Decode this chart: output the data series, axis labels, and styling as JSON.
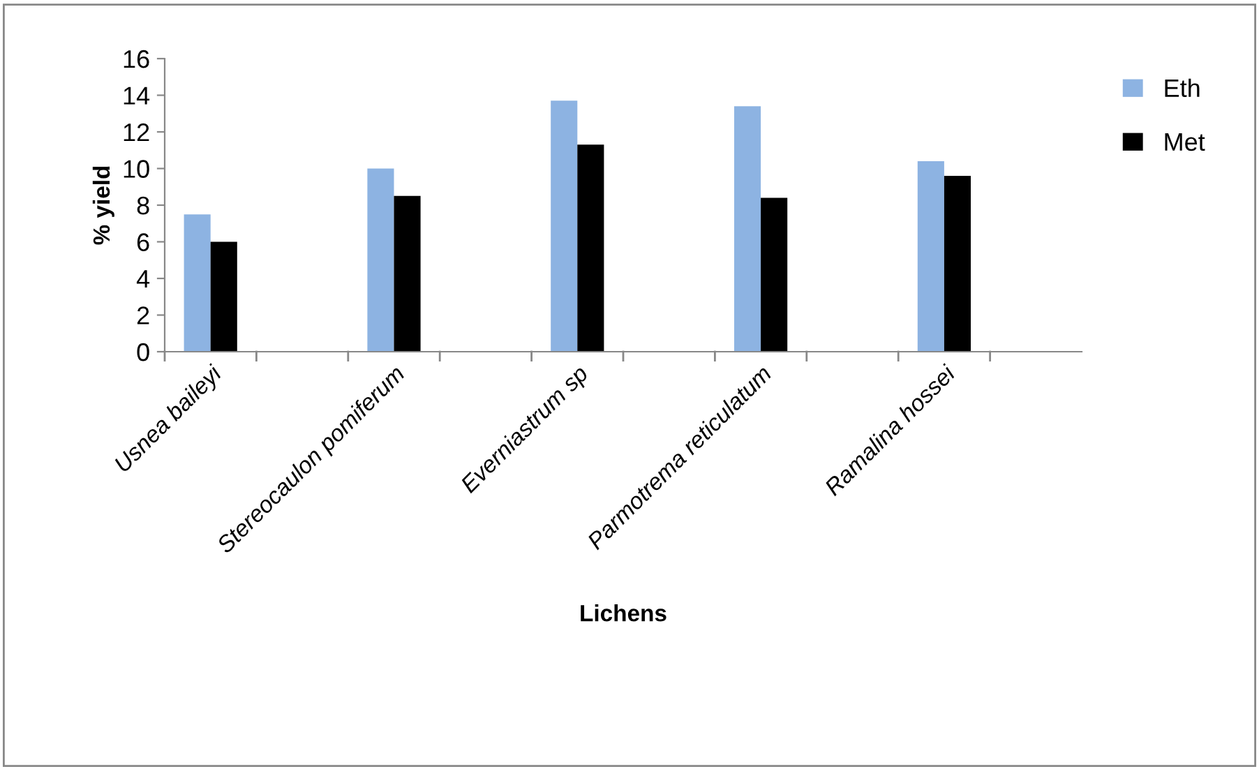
{
  "chart_data": {
    "type": "bar",
    "xlabel": "Lichens",
    "ylabel": "% yield",
    "categories": [
      "Usnea baileyi",
      null,
      "Stereocaulon pomiferum",
      null,
      "Everniastrum sp",
      null,
      "Parmotrema reticulatum",
      null,
      "Ramalina hossei",
      null
    ],
    "series": [
      {
        "name": "Eth",
        "color": "#8db3e2",
        "values": [
          7.5,
          null,
          10.0,
          null,
          13.7,
          null,
          13.4,
          null,
          10.4,
          null
        ]
      },
      {
        "name": "Met",
        "color": "#000000",
        "values": [
          6.0,
          null,
          8.5,
          null,
          11.3,
          null,
          8.4,
          null,
          9.6,
          null
        ]
      }
    ],
    "ylim": [
      0,
      16
    ],
    "yticks": [
      0,
      2,
      4,
      6,
      8,
      10,
      12,
      14,
      16
    ],
    "grid": false,
    "legend": "right"
  }
}
